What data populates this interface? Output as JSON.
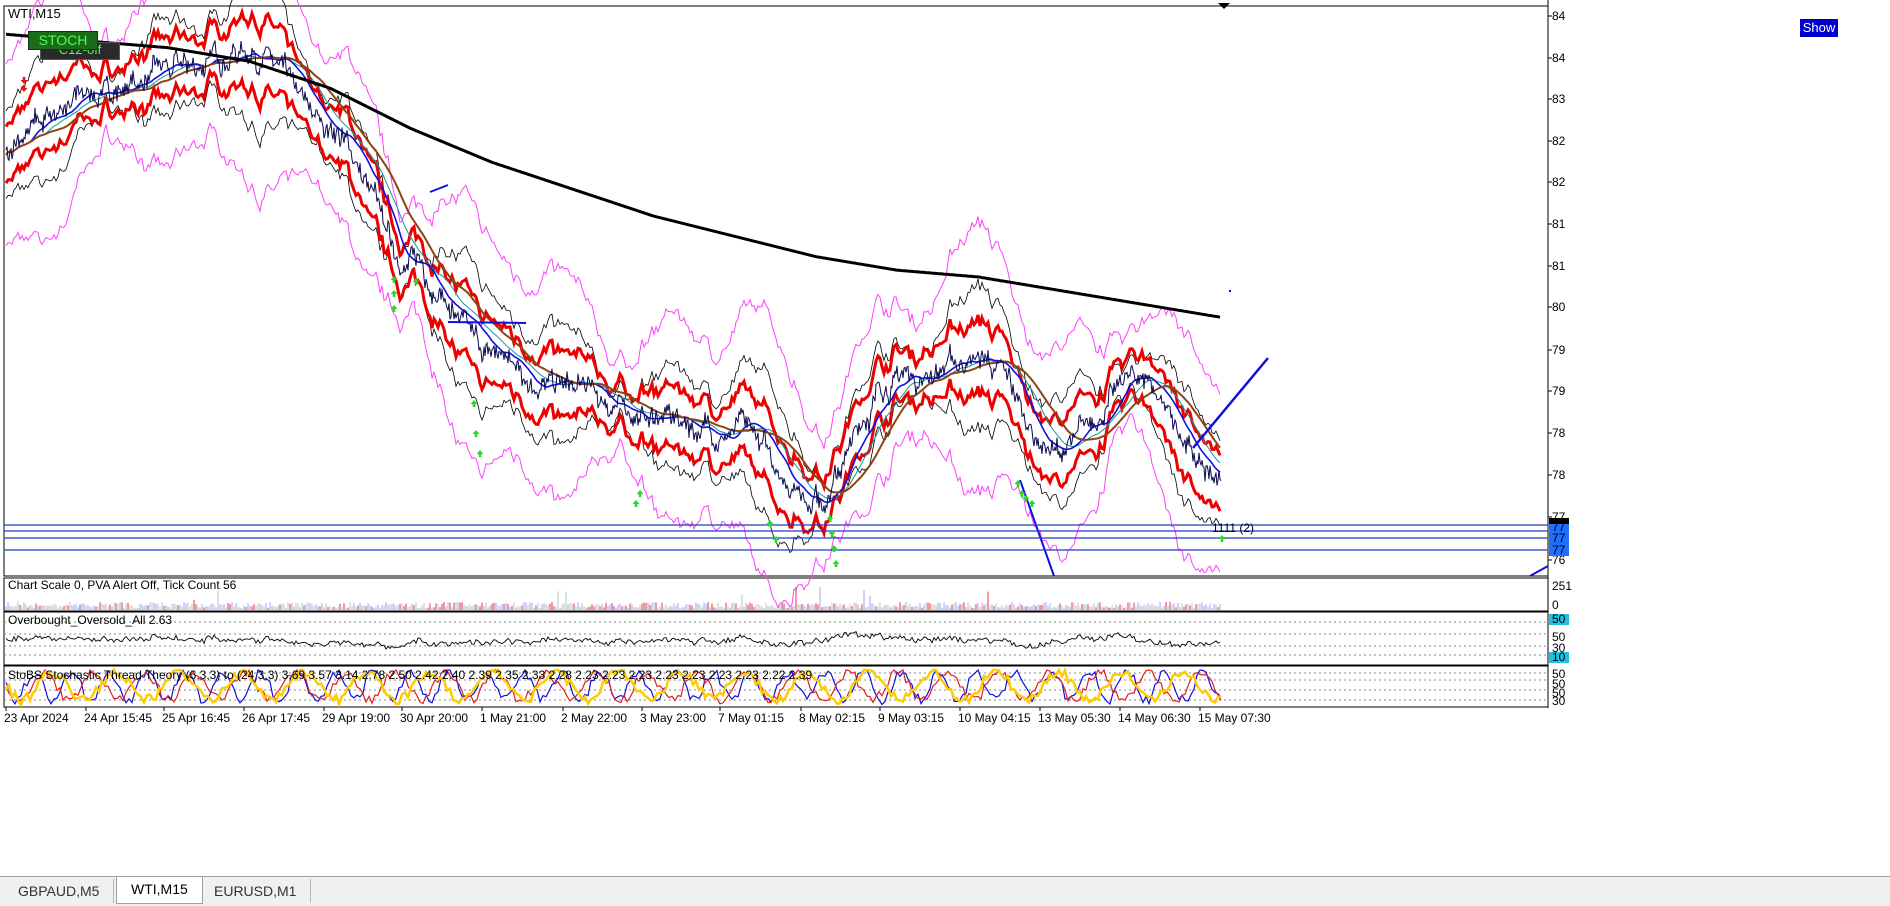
{
  "window": {
    "symbol_title": "WTI,M15",
    "show_label": "Show"
  },
  "badges": {
    "stoch": "STOCH",
    "stoch_sub": "C12-off"
  },
  "tabs": [
    {
      "label": "GBPAUD,M5",
      "active": false
    },
    {
      "label": "WTI,M15",
      "active": true
    },
    {
      "label": "EURUSD,M1",
      "active": false
    }
  ],
  "price_axis": {
    "ticks": [
      "84",
      "84",
      "83",
      "82",
      "82",
      "81",
      "81",
      "80",
      "79",
      "79",
      "78",
      "78",
      "77",
      "76"
    ],
    "ylim": [
      76.2,
      84.3
    ]
  },
  "price_levels": [
    {
      "label": "77",
      "color": "#1f6fff"
    },
    {
      "label": "77",
      "color": "#1f6fff"
    },
    {
      "label": "77",
      "color": "#1f6fff"
    }
  ],
  "annotation": "1111 (2)",
  "time_axis": [
    "23 Apr 2024",
    "24 Apr 15:45",
    "25 Apr 16:45",
    "26 Apr 17:45",
    "29 Apr 19:00",
    "30 Apr 20:00",
    "1 May 21:00",
    "2 May 22:00",
    "3 May 23:00",
    "7 May 01:15",
    "8 May 02:15",
    "9 May 03:15",
    "10 May 04:15",
    "13 May 05:30",
    "14 May 06:30",
    "15 May 07:30"
  ],
  "volume_panel": {
    "title": "Chart Scale  0,   PVA Alert Off,   Tick Count  56",
    "ticks": [
      "251",
      "0"
    ]
  },
  "overbought_panel": {
    "title": "Overbought_Oversold_All 2.63",
    "ticks": [
      "50",
      "50",
      "30",
      "10"
    ],
    "highlight_top": "50",
    "highlight_bottom": "10"
  },
  "stoch_panel": {
    "title": "StoBS Stochastic Thread Theory (6,3,3) to (24,3,3) 3.69 3.57 3.14 2.78 2.50 2.42 2.40 2.39 2.35 2.33 2.28 2.23 2.23 2.23 2.23 2.23 2.23 2.23 2.22 2.39",
    "ticks": [
      "50",
      "50",
      "50",
      "30"
    ]
  },
  "colors": {
    "price": "#0a0a50",
    "env_outer": "#ff40ff",
    "env_red": "#ee0000",
    "ma_blue": "#1010dd",
    "ma_brown": "#8b4513",
    "ma_black": "#000000",
    "level_line": "#1f3fbf",
    "arrow_green": "#22dd22",
    "arrow_red": "#ee1111",
    "stoch_yellow": "#ffcc00"
  },
  "chart_data": {
    "type": "line",
    "title": "WTI,M15",
    "x": [
      "23 Apr 2024",
      "24 Apr 15:45",
      "25 Apr 16:45",
      "26 Apr 17:45",
      "29 Apr 19:00",
      "30 Apr 20:00",
      "1 May 21:00",
      "2 May 22:00",
      "3 May 23:00",
      "7 May 01:15",
      "8 May 02:15",
      "9 May 03:15",
      "10 May 04:15",
      "13 May 05:30",
      "14 May 06:30",
      "15 May 07:30"
    ],
    "series": [
      {
        "values": [
          82.3,
          83.1,
          83.4,
          83.8,
          82.6,
          80.6,
          79.2,
          78.7,
          78.3,
          78.1,
          77.2,
          78.9,
          79.2,
          77.8,
          78.9,
          77.2
        ]
      },
      {
        "values": [
          84.0,
          83.9,
          83.8,
          83.6,
          83.2,
          82.6,
          82.1,
          81.7,
          81.3,
          81.0,
          80.7,
          80.5,
          80.4,
          80.2,
          80.0,
          79.8
        ]
      }
    ],
    "ylim": [
      76.2,
      84.3
    ],
    "grid": false
  }
}
